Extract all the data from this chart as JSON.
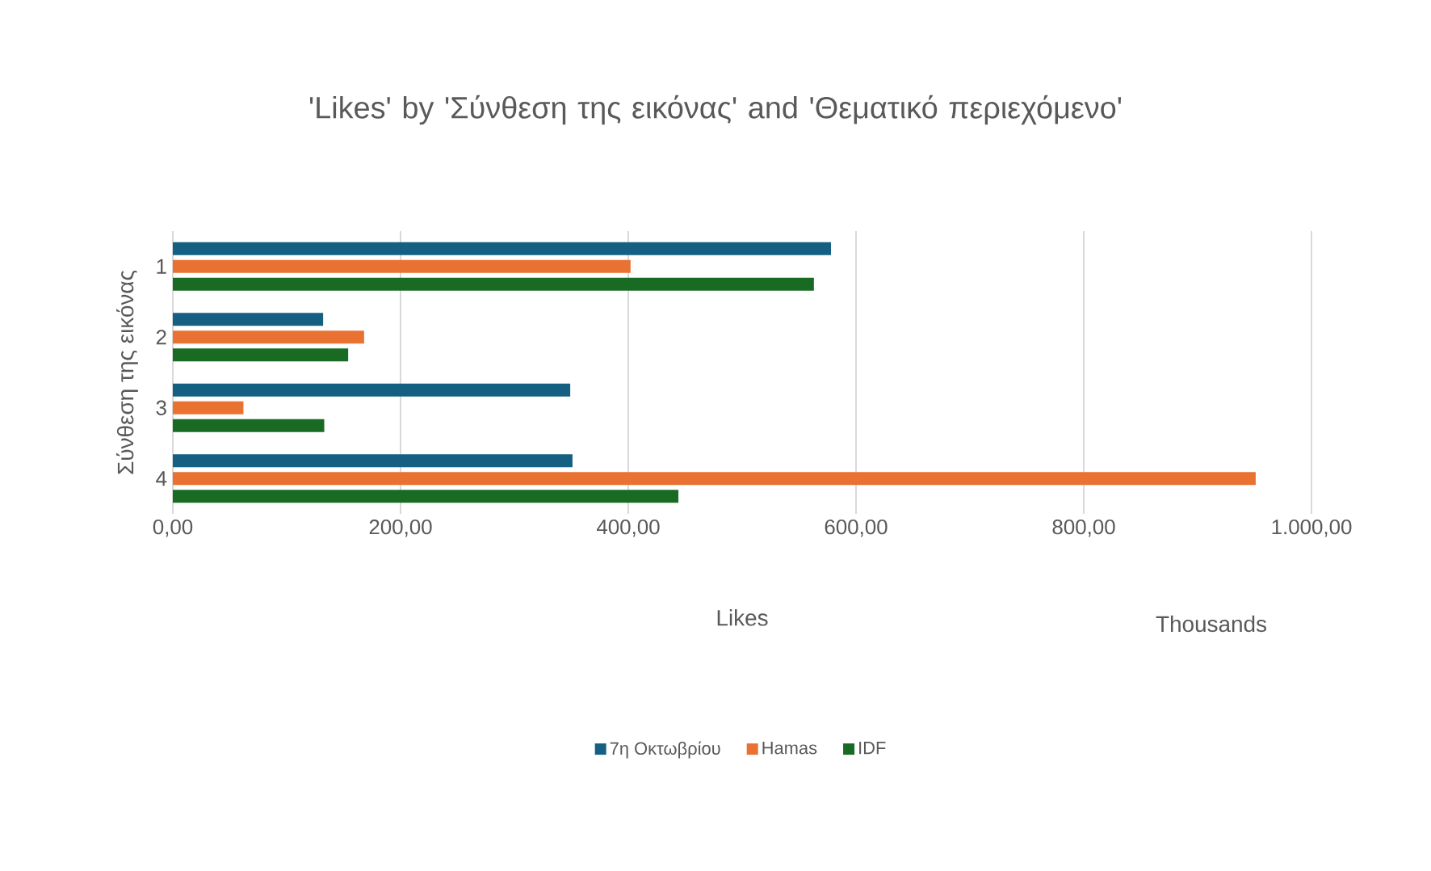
{
  "chart_data": {
    "type": "bar",
    "orientation": "horizontal",
    "title": "'Likes' by 'Σύνθεση της εικόνας' and 'Θεματικό περιεχόμενο'",
    "xlabel": "Likes",
    "ylabel": "Σύνθεση της εικόνας",
    "annotations": [
      "Thousands"
    ],
    "categories": [
      "1",
      "2",
      "3",
      "4"
    ],
    "series": [
      {
        "name": "7η Οκτωβρίου",
        "color": "#156082",
        "values": [
          578,
          132,
          349,
          351
        ]
      },
      {
        "name": "Hamas",
        "color": "#e97132",
        "values": [
          402,
          168,
          62,
          951
        ]
      },
      {
        "name": "IDF",
        "color": "#196b24",
        "values": [
          563,
          154,
          133,
          444
        ]
      }
    ],
    "xlim": [
      0,
      1000
    ],
    "xticks": [
      {
        "value": 0,
        "label": "0,00"
      },
      {
        "value": 200,
        "label": "200,00"
      },
      {
        "value": 400,
        "label": "400,00"
      },
      {
        "value": 600,
        "label": "600,00"
      },
      {
        "value": 800,
        "label": "800,00"
      },
      {
        "value": 1000,
        "label": "1.000,00"
      }
    ],
    "grid": "x",
    "legend": "bottom"
  }
}
